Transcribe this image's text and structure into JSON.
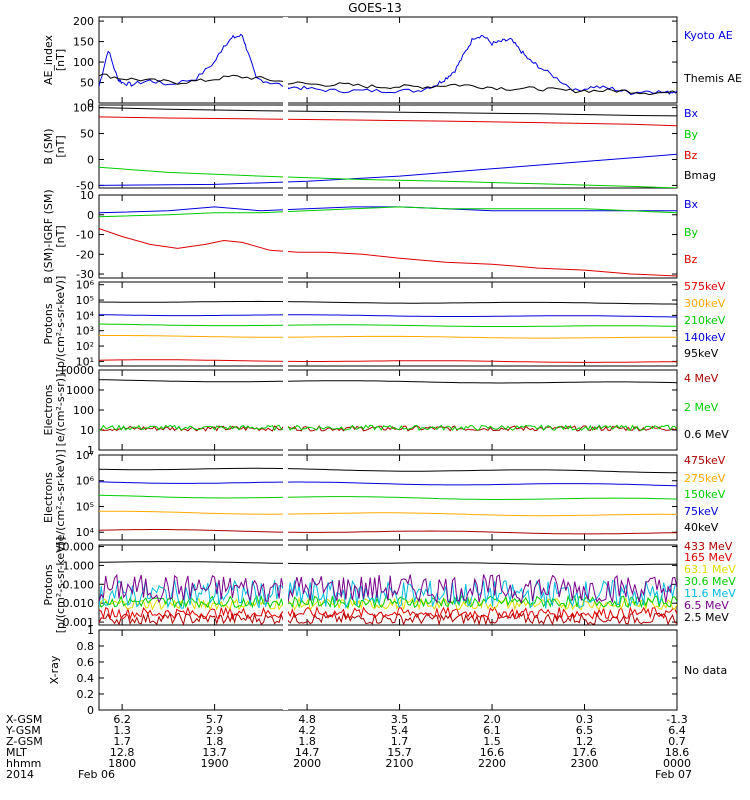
{
  "title": "GOES-13",
  "colors": {
    "black": "#000000",
    "blue": "#0000dd",
    "red": "#dd0000",
    "green": "#00cc00",
    "orange": "#ffaa00",
    "brown": "#aa0000",
    "yellow": "#dddd00",
    "cyan": "#00bbdd",
    "purple": "#770088"
  },
  "chart_data": [
    {
      "type": "line",
      "id": "ae",
      "ylabel": "AE_index\n[nT]",
      "ylim": [
        0,
        210
      ],
      "yticks": [
        0,
        50,
        100,
        150,
        200
      ],
      "log": false,
      "x_range_hours": [
        17.75,
        24.0
      ],
      "series": [
        {
          "name": "Kyoto AE",
          "color": "blue",
          "x": [
            17.75,
            17.85,
            17.95,
            18.0,
            18.1,
            18.3,
            18.5,
            18.8,
            19.0,
            19.1,
            19.2,
            19.3,
            19.35,
            19.45,
            19.6,
            19.8,
            20.0,
            20.3,
            20.6,
            20.9,
            21.2,
            21.4,
            21.5,
            21.6,
            21.7,
            21.8,
            21.9,
            22.0,
            22.1,
            22.2,
            22.3,
            22.4,
            22.5,
            22.7,
            22.9,
            23.1,
            23.3,
            23.5,
            23.7,
            23.9,
            24.0
          ],
          "y": [
            40,
            130,
            60,
            50,
            45,
            55,
            45,
            60,
            100,
            140,
            160,
            165,
            130,
            60,
            50,
            40,
            35,
            30,
            30,
            30,
            30,
            45,
            60,
            80,
            120,
            160,
            165,
            145,
            150,
            155,
            130,
            105,
            90,
            60,
            30,
            40,
            35,
            25,
            30,
            25,
            30
          ]
        },
        {
          "name": "Themis AE",
          "color": "black",
          "x": [
            17.75,
            18.0,
            18.3,
            18.6,
            18.9,
            19.2,
            19.5,
            19.8,
            20.1,
            20.4,
            20.7,
            21.0,
            21.3,
            21.6,
            21.9,
            22.2,
            22.5,
            22.8,
            23.1,
            23.4,
            23.7,
            24.0
          ],
          "y": [
            70,
            60,
            55,
            50,
            55,
            65,
            60,
            50,
            45,
            45,
            40,
            40,
            40,
            45,
            40,
            35,
            35,
            30,
            30,
            30,
            25,
            25
          ]
        }
      ]
    },
    {
      "type": "line",
      "id": "bsm",
      "ylabel": "B (SM)\n[nT]",
      "ylim": [
        -55,
        105
      ],
      "yticks": [
        -50,
        0,
        50,
        100
      ],
      "log": false,
      "x_range_hours": [
        17.75,
        24.0
      ],
      "series": [
        {
          "name": "Bx",
          "color": "blue",
          "x": [
            17.75,
            19.0,
            20.0,
            21.0,
            22.0,
            23.0,
            24.0
          ],
          "y": [
            -50,
            -48,
            -42,
            -32,
            -18,
            -4,
            10
          ]
        },
        {
          "name": "By",
          "color": "green",
          "x": [
            17.75,
            18.5,
            19.5,
            20.5,
            21.5,
            22.5,
            23.5,
            24.0
          ],
          "y": [
            -15,
            -25,
            -32,
            -38,
            -42,
            -47,
            -52,
            -55
          ]
        },
        {
          "name": "Bz",
          "color": "red",
          "x": [
            17.75,
            18.5,
            19.5,
            20.5,
            21.5,
            22.5,
            23.5,
            24.0
          ],
          "y": [
            82,
            80,
            78,
            76,
            74,
            71,
            68,
            65
          ]
        },
        {
          "name": "Bmag",
          "color": "black",
          "x": [
            17.75,
            18.5,
            19.5,
            20.5,
            21.5,
            22.5,
            23.5,
            24.0
          ],
          "y": [
            100,
            97,
            94,
            92,
            90,
            88,
            85,
            84
          ]
        }
      ]
    },
    {
      "type": "line",
      "id": "bigrf",
      "ylabel": "B (SM)-IGRF (SM)\n[nT]",
      "ylim": [
        -32,
        10
      ],
      "yticks": [
        -30,
        -20,
        -10,
        0,
        10
      ],
      "log": false,
      "x_range_hours": [
        17.75,
        24.0
      ],
      "series": [
        {
          "name": "Bx",
          "color": "blue",
          "x": [
            17.75,
            18.5,
            19.0,
            19.5,
            20.0,
            20.5,
            21.0,
            21.5,
            22.0,
            22.5,
            23.0,
            23.5,
            24.0
          ],
          "y": [
            1,
            2,
            4,
            2,
            3,
            4,
            4,
            3,
            2,
            2,
            2,
            2,
            2
          ]
        },
        {
          "name": "By",
          "color": "green",
          "x": [
            17.75,
            18.5,
            19.0,
            19.5,
            20.0,
            20.5,
            21.0,
            21.5,
            22.0,
            22.5,
            23.0,
            23.5,
            24.0
          ],
          "y": [
            -1,
            0,
            1,
            1,
            2,
            3,
            4,
            3,
            3,
            3,
            3,
            2,
            1
          ]
        },
        {
          "name": "Bz",
          "color": "red",
          "x": [
            17.75,
            18.0,
            18.3,
            18.6,
            18.9,
            19.1,
            19.3,
            19.6,
            19.9,
            20.2,
            20.6,
            21.0,
            21.5,
            22.0,
            22.5,
            23.0,
            23.5,
            24.0
          ],
          "y": [
            -7,
            -11,
            -15,
            -17,
            -15,
            -13,
            -14,
            -18,
            -19,
            -19,
            -20,
            -22,
            -24,
            -25,
            -27,
            -28,
            -30,
            -31
          ]
        }
      ]
    },
    {
      "type": "line",
      "id": "protons",
      "ylabel": "Protons\n[p/(cm²-s-sr-keV)]",
      "ylim": [
        5,
        1500000
      ],
      "yticks": [
        10,
        100,
        1000,
        10000,
        100000,
        1000000
      ],
      "ytick_labels": [
        "10¹",
        "10²",
        "10³",
        "10⁴",
        "10⁵",
        "10⁶"
      ],
      "log": true,
      "x_range_hours": [
        17.75,
        24.0
      ],
      "series": [
        {
          "name": "575keV",
          "color": "red",
          "flat": 12
        },
        {
          "name": "300keV",
          "color": "orange",
          "flat": 450
        },
        {
          "name": "210keV",
          "color": "green",
          "flat": 2500
        },
        {
          "name": "140keV",
          "color": "blue",
          "flat": 11000
        },
        {
          "name": "95keV",
          "color": "black",
          "flat": 80000
        }
      ]
    },
    {
      "type": "line",
      "id": "electrons_mev",
      "ylabel": "Electrons\n[e/(cm²-s-sr)]",
      "ylim": [
        1,
        10000
      ],
      "yticks": [
        1,
        10,
        100,
        1000,
        10000
      ],
      "log": true,
      "x_range_hours": [
        17.75,
        24.0
      ],
      "series": [
        {
          "name": "4 MeV",
          "color": "brown",
          "flat": 12
        },
        {
          "name": "2 MeV",
          "color": "green",
          "flat": 13
        },
        {
          "name": "0.6 MeV",
          "color": "black",
          "flat": 3000
        }
      ]
    },
    {
      "type": "line",
      "id": "electrons_kev",
      "ylabel": "Electrons\n[e/(cm²-s-sr-keV)]",
      "ylim": [
        5000,
        10000000
      ],
      "yticks": [
        10000,
        100000,
        1000000,
        10000000
      ],
      "ytick_labels": [
        "10⁴",
        "10⁵",
        "10⁶",
        "10⁷"
      ],
      "log": true,
      "x_range_hours": [
        17.75,
        24.0
      ],
      "series": [
        {
          "name": "475keV",
          "color": "brown",
          "flat": 12000
        },
        {
          "name": "275keV",
          "color": "orange",
          "flat": 60000
        },
        {
          "name": "150keV",
          "color": "green",
          "flat": 250000
        },
        {
          "name": "75keV",
          "color": "blue",
          "flat": 900000
        },
        {
          "name": "40keV",
          "color": "black",
          "flat": 3000000
        }
      ]
    },
    {
      "type": "line",
      "id": "protons_mev",
      "ylabel": "Protons\n[p/(cm²-s-sr-keV)]",
      "ylim": [
        0.0007,
        12
      ],
      "yticks": [
        0.001,
        0.01,
        0.1,
        1,
        10
      ],
      "ytick_labels": [
        "0.001",
        "0.010",
        "0.100",
        "1.000",
        "10.000"
      ],
      "log": true,
      "x_range_hours": [
        17.75,
        24.0
      ],
      "series": [
        {
          "name": "433 MeV",
          "color": "brown",
          "flat": 0.0015
        },
        {
          "name": "165 MeV",
          "color": "red",
          "flat": 0.003
        },
        {
          "name": "63.1 MeV",
          "color": "yellow",
          "flat": 0.009
        },
        {
          "name": "30.6 MeV",
          "color": "green",
          "flat": 0.012
        },
        {
          "name": "11.6 MeV",
          "color": "cyan",
          "flat": 0.03
        },
        {
          "name": "6.5 MeV",
          "color": "purple",
          "flat": 0.06
        },
        {
          "name": "2.5 MeV",
          "color": "black",
          "flat": 1.5
        }
      ]
    },
    {
      "type": "line",
      "id": "xray",
      "ylabel": "X-ray",
      "ylim": [
        0,
        1
      ],
      "yticks": [
        0,
        0.2,
        0.4,
        0.6,
        0.8,
        1.0
      ],
      "log": false,
      "x_range_hours": [
        17.75,
        24.0
      ],
      "note": "No data",
      "series": []
    }
  ],
  "ephemeris": {
    "rows": [
      {
        "label": "X-GSM",
        "values": [
          "6.2",
          "5.7",
          "4.8",
          "3.5",
          "2.0",
          "0.3",
          "-1.3"
        ]
      },
      {
        "label": "Y-GSM",
        "values": [
          "1.3",
          "2.9",
          "4.2",
          "5.4",
          "6.1",
          "6.5",
          "6.4"
        ]
      },
      {
        "label": "Z-GSM",
        "values": [
          "1.7",
          "1.8",
          "1.8",
          "1.7",
          "1.5",
          "1.2",
          "0.7"
        ]
      },
      {
        "label": "MLT",
        "values": [
          "12.8",
          "13.7",
          "14.7",
          "15.7",
          "16.6",
          "17.6",
          "18.6"
        ]
      },
      {
        "label": "hhmm",
        "values": [
          "1800",
          "1900",
          "2000",
          "2100",
          "2200",
          "2300",
          "0000"
        ]
      }
    ],
    "year": "2014",
    "date_start": "Feb 06",
    "date_end": "Feb 07"
  }
}
